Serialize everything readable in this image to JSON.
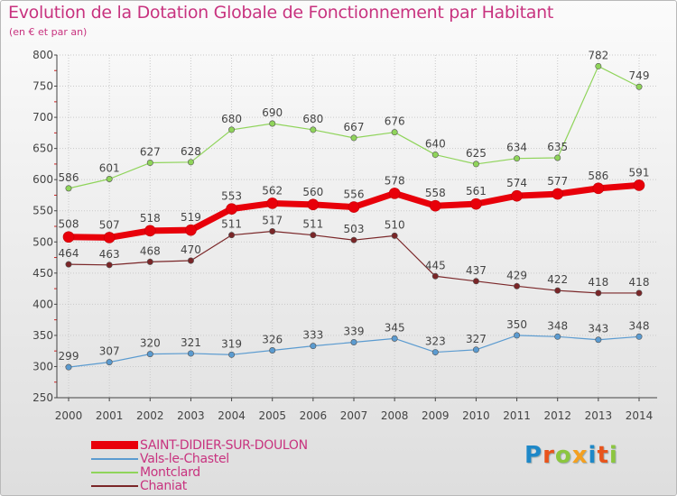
{
  "header": {
    "title": "Evolution de la Dotation Globale de Fonctionnement par Habitant",
    "subtitle": "(en € et par an)"
  },
  "colors": {
    "text": "#c8337f",
    "axis": "#444444",
    "grid": "#c9c9c9"
  },
  "logo": {
    "text": "Proxiti",
    "letters": [
      "P",
      "r",
      "o",
      "x",
      "i",
      "t",
      "i"
    ],
    "letter_colors": [
      "#1e88c8",
      "#e8541c",
      "#8cc63f",
      "#f4a020",
      "#1e88c8",
      "#e8541c",
      "#8cc63f"
    ]
  },
  "chart_data": {
    "type": "line",
    "title": "Evolution de la Dotation Globale de Fonctionnement par Habitant",
    "subtitle": "(en € et par an)",
    "xlabel": "",
    "ylabel": "",
    "x": [
      2000,
      2001,
      2002,
      2003,
      2004,
      2005,
      2006,
      2007,
      2008,
      2009,
      2010,
      2011,
      2012,
      2013,
      2014
    ],
    "x_labels": [
      "2000",
      "2001",
      "2002",
      "2003",
      "2004",
      "2005",
      "2006",
      "2007",
      "2008",
      "2009",
      "2010",
      "2011",
      "2012",
      "2013",
      "2014"
    ],
    "ylim": [
      250,
      800
    ],
    "y_ticks": [
      250,
      300,
      350,
      400,
      450,
      500,
      550,
      600,
      650,
      700,
      750,
      800
    ],
    "y_tick_labels": [
      "250",
      "300",
      "350",
      "400",
      "450",
      "500",
      "550",
      "600",
      "650",
      "700",
      "750",
      "800"
    ],
    "grid": true,
    "legend_position": "bottom-left",
    "series": [
      {
        "name": "SAINT-DIDIER-SUR-DOULON",
        "color": "#e8000a",
        "values": [
          508,
          507,
          518,
          519,
          553,
          562,
          560,
          556,
          578,
          558,
          561,
          574,
          577,
          586,
          591
        ],
        "labels": [
          "508",
          "507",
          "518",
          "519",
          "553",
          "562",
          "560",
          "556",
          "578",
          "558",
          "561",
          "574",
          "577",
          "586",
          "591"
        ]
      },
      {
        "name": "Vals-le-Chastel",
        "color": "#5b9bd0",
        "values": [
          299,
          307,
          320,
          321,
          319,
          326,
          333,
          339,
          345,
          323,
          327,
          350,
          348,
          343,
          348
        ],
        "labels": [
          "299",
          "307",
          "320",
          "321",
          "319",
          "326",
          "333",
          "339",
          "345",
          "323",
          "327",
          "350",
          "348",
          "343",
          "348"
        ]
      },
      {
        "name": "Montclard",
        "color": "#8fd45a",
        "values": [
          586,
          601,
          627,
          628,
          680,
          690,
          680,
          667,
          676,
          640,
          625,
          634,
          635,
          782,
          749
        ],
        "labels": [
          "586",
          "601",
          "627",
          "628",
          "680",
          "690",
          "680",
          "667",
          "676",
          "640",
          "625",
          "634",
          "635",
          "782",
          "749"
        ]
      },
      {
        "name": "Chaniat",
        "color": "#7a2628",
        "values": [
          464,
          463,
          468,
          470,
          511,
          517,
          511,
          503,
          510,
          445,
          437,
          429,
          422,
          418,
          418
        ],
        "labels": [
          "464",
          "463",
          "468",
          "470",
          "511",
          "517",
          "511",
          "503",
          "510",
          "445",
          "437",
          "429",
          "422",
          "418",
          "418"
        ]
      }
    ]
  }
}
